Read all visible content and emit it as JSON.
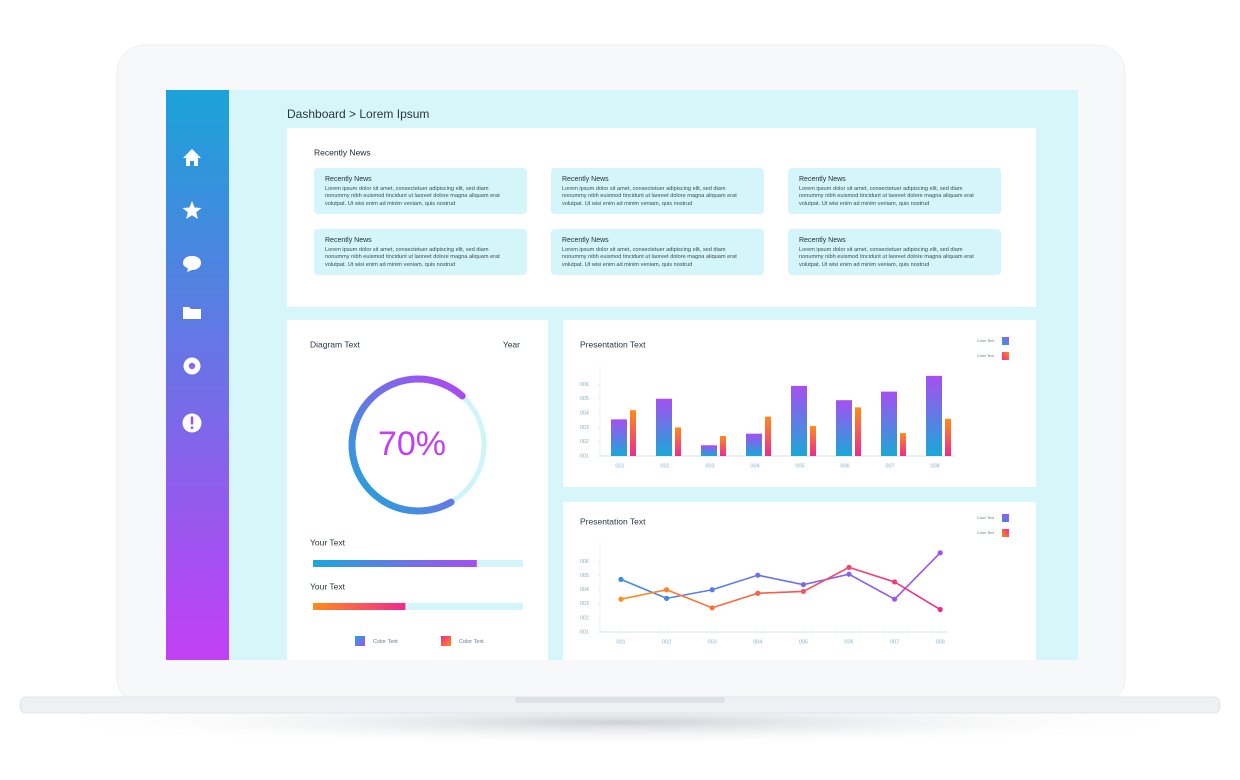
{
  "breadcrumb": "Dashboard > Lorem Ipsum",
  "news": {
    "title": "Recently News",
    "items": [
      {
        "title": "Recently News",
        "text": "Lorem ipsum dolor sit amet, consectetuer adipiscing elit, sed diam nonummy nibh euismod tincidunt ut laoreet dolore magna aliquam erat volutpat. Ut wisi enim ad minim veniam, quis nostrud"
      },
      {
        "title": "Recently News",
        "text": "Lorem ipsum dolor sit amet, consectetuer adipiscing elit, sed diam nonummy nibh euismod tincidunt ut laoreet dolore magna aliquam erat volutpat. Ut wisi enim ad minim veniam, quis nostrud"
      },
      {
        "title": "Recently News",
        "text": "Lorem ipsum dolor sit amet, consectetuer adipiscing elit, sed diam nonummy nibh euismod tincidunt ut laoreet dolore magna aliquam erat volutpat. Ut wisi enim ad minim veniam, quis nostrud"
      },
      {
        "title": "Recently News",
        "text": "Lorem ipsum dolor sit amet, consectetuer adipiscing elit, sed diam nonummy nibh euismod tincidunt ut laoreet dolore magna aliquam erat volutpat. Ut wisi enim ad minim veniam, quis nostrud"
      },
      {
        "title": "Recently News",
        "text": "Lorem ipsum dolor sit amet, consectetuer adipiscing elit, sed diam nonummy nibh euismod tincidunt ut laoreet dolore magna aliquam erat volutpat. Ut wisi enim ad minim veniam, quis nostrud"
      },
      {
        "title": "Recently News",
        "text": "Lorem ipsum dolor sit amet, consectetuer adipiscing elit, sed diam nonummy nibh euismod tincidunt ut laoreet dolore magna aliquam erat volutpat. Ut wisi enim ad minim veniam, quis nostrud"
      }
    ]
  },
  "diagram": {
    "title": "Diagram Text",
    "period": "Year",
    "value": 70,
    "value_label": "70%",
    "color": [
      "#1aa8d8",
      "#b445f2"
    ],
    "progress": [
      {
        "label": "Your Text",
        "value": 78,
        "color": [
          "#1aa8d8",
          "#a64ff0"
        ]
      },
      {
        "label": "Your Text",
        "value": 44,
        "color": [
          "#ff8c1a",
          "#ee2a8f"
        ]
      }
    ],
    "legend": [
      {
        "name": "Color Text",
        "color": [
          "#1aa8d8",
          "#a64ff0"
        ]
      },
      {
        "name": "Color Text",
        "color": [
          "#ee2a8f",
          "#ff8c1a"
        ]
      }
    ]
  },
  "bar_chart": {
    "type": "bar",
    "title": "Presentation Text",
    "categories": [
      "001",
      "002",
      "003",
      "004",
      "005",
      "006",
      "007",
      "008"
    ],
    "series": [
      {
        "name": "Color Text",
        "color": [
          "#1aa8d8",
          "#a64ff0"
        ],
        "values": [
          3.56,
          5.0,
          1.75,
          2.56,
          5.9,
          4.9,
          5.5,
          6.6
        ]
      },
      {
        "name": "Color Text",
        "color": [
          "#ee2a8f",
          "#ff8c1a"
        ],
        "values": [
          4.2,
          3.0,
          2.4,
          3.75,
          3.1,
          4.4,
          2.6,
          3.6
        ]
      }
    ],
    "ylim": [
      1,
      6.8
    ],
    "yticks": [
      {
        "value": 1,
        "label": "001"
      },
      {
        "value": 2,
        "label": "002"
      },
      {
        "value": 3,
        "label": "003"
      },
      {
        "value": 4,
        "label": "004"
      },
      {
        "value": 5,
        "label": "005"
      },
      {
        "value": 6,
        "label": "006"
      }
    ]
  },
  "line_chart": {
    "type": "line",
    "title": "Presentation Text",
    "categories": [
      "001",
      "002",
      "003",
      "004",
      "005",
      "006",
      "007",
      "008"
    ],
    "series": [
      {
        "name": "Color Text",
        "color": [
          "#3a8fe0",
          "#a64ff0"
        ],
        "values": [
          4.72,
          3.38,
          3.99,
          5.02,
          4.35,
          5.09,
          3.32,
          6.6
        ]
      },
      {
        "name": "Color Text",
        "color": [
          "#ff8c1a",
          "#ee2a8f"
        ],
        "values": [
          3.32,
          3.99,
          2.71,
          3.74,
          3.87,
          5.57,
          4.54,
          2.59
        ]
      }
    ],
    "ylim": [
      1,
      6.8
    ],
    "yticks": [
      {
        "value": 1,
        "label": "001"
      },
      {
        "value": 2,
        "label": "002"
      },
      {
        "value": 3,
        "label": "003"
      },
      {
        "value": 4,
        "label": "004"
      },
      {
        "value": 5,
        "label": "005"
      },
      {
        "value": 6,
        "label": "006"
      }
    ]
  }
}
